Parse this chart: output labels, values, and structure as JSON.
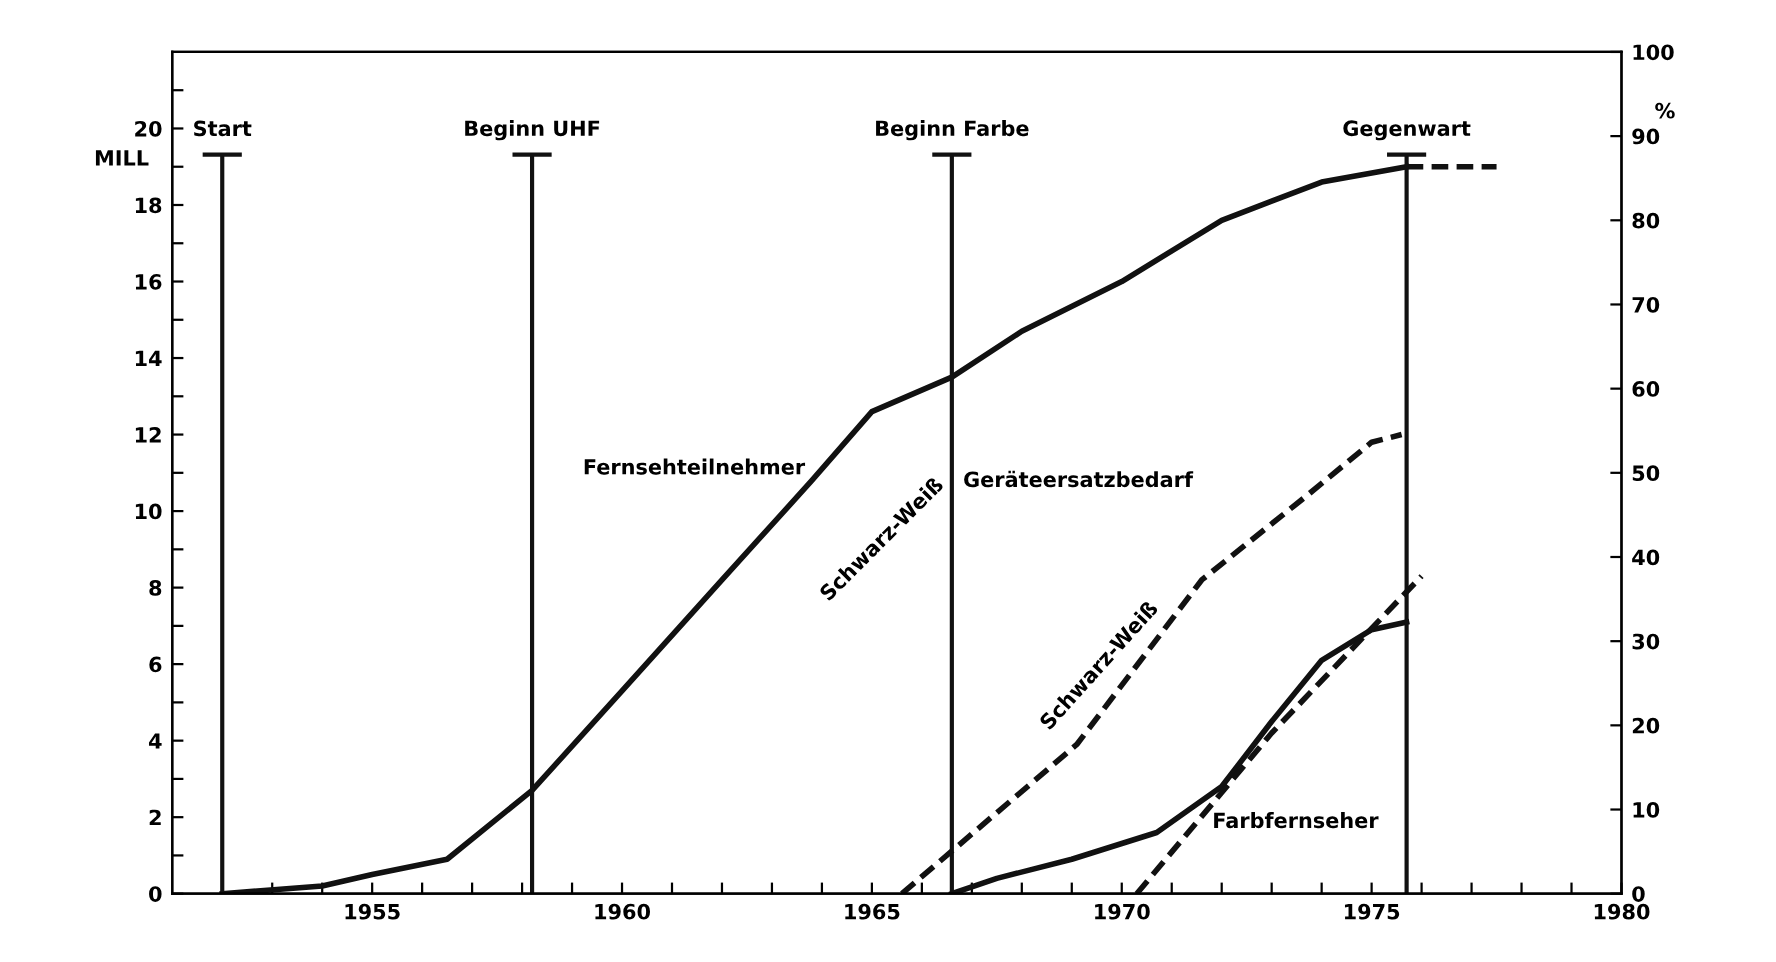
{
  "chart_data": {
    "type": "line",
    "ylabel": "MILL",
    "y2label": "%",
    "xlim": [
      1951,
      1980
    ],
    "xticks": [
      {
        "value": 1952,
        "label": null
      },
      {
        "value": 1953,
        "label": null
      },
      {
        "value": 1954,
        "label": null
      },
      1955,
      {
        "value": 1956,
        "label": null
      },
      {
        "value": 1957,
        "label": null
      },
      {
        "value": 1958,
        "label": null
      },
      {
        "value": 1959,
        "label": null
      },
      1960,
      {
        "value": 1961,
        "label": null
      },
      {
        "value": 1962,
        "label": null
      },
      {
        "value": 1963,
        "label": null
      },
      {
        "value": 1964,
        "label": null
      },
      1965,
      {
        "value": 1966,
        "label": null
      },
      {
        "value": 1967,
        "label": null
      },
      {
        "value": 1968,
        "label": null
      },
      {
        "value": 1969,
        "label": null
      },
      1970,
      {
        "value": 1971,
        "label": null
      },
      {
        "value": 1972,
        "label": null
      },
      {
        "value": 1973,
        "label": null
      },
      {
        "value": 1974,
        "label": null
      },
      1975,
      {
        "value": 1976,
        "label": null
      },
      {
        "value": 1977,
        "label": null
      },
      {
        "value": 1978,
        "label": null
      },
      {
        "value": 1979,
        "label": null
      },
      1980
    ],
    "ylim": [
      0,
      22
    ],
    "yticks": [
      0,
      {
        "value": 1,
        "label": null
      },
      2,
      {
        "value": 3,
        "label": null
      },
      4,
      {
        "value": 5,
        "label": null
      },
      6,
      {
        "value": 7,
        "label": null
      },
      8,
      {
        "value": 9,
        "label": null
      },
      10,
      {
        "value": 11,
        "label": null
      },
      12,
      {
        "value": 13,
        "label": null
      },
      14,
      {
        "value": 15,
        "label": null
      },
      16,
      {
        "value": 17,
        "label": null
      },
      18,
      {
        "value": 19,
        "label": null
      },
      20,
      {
        "value": 21,
        "label": null
      }
    ],
    "y2lim": [
      0,
      100
    ],
    "y2ticks": [
      0,
      10,
      20,
      30,
      40,
      50,
      60,
      70,
      80,
      90,
      100
    ],
    "grid": false,
    "legend": false,
    "marker": "none",
    "series": [
      {
        "color": "#111111",
        "line_style": "solid",
        "x": [
          1952,
          1954,
          1955,
          1956.5,
          1958.2,
          1960,
          1962,
          1963.8,
          1965,
          1966.6,
          1968,
          1970,
          1972,
          1974,
          1975.7
        ],
        "values": [
          0,
          0.2,
          0.5,
          0.9,
          2.7,
          5.3,
          8.2,
          10.8,
          12.6,
          13.5,
          14.7,
          16.0,
          17.6,
          18.6,
          19.0
        ]
      },
      {
        "color": "#111111",
        "line_style": "dashed",
        "x": [
          1975.7,
          1977.5
        ],
        "values": [
          19.0,
          19.0
        ]
      },
      {
        "color": "#111111",
        "line_style": "dashed",
        "x": [
          1965.6,
          1969.1,
          1971.6,
          1973.7,
          1975.0,
          1975.6
        ],
        "values": [
          0,
          3.9,
          8.2,
          10.4,
          11.8,
          12.0
        ]
      },
      {
        "color": "#111111",
        "line_style": "solid",
        "x": [
          1966.6,
          1967.5,
          1969,
          1970.7,
          1972,
          1973,
          1974,
          1975,
          1975.7
        ],
        "values": [
          0,
          0.4,
          0.9,
          1.6,
          2.8,
          4.5,
          6.1,
          6.9,
          7.1
        ]
      },
      {
        "color": "#111111",
        "line_style": "dashed",
        "x": [
          1970.3,
          1973,
          1976
        ],
        "values": [
          0,
          4.2,
          8.3
        ]
      }
    ],
    "ref_lines": [
      {
        "axis": "x",
        "value": 1952,
        "label": "Start"
      },
      {
        "axis": "x",
        "value": 1958.2,
        "label": "Beginn UHF"
      },
      {
        "axis": "x",
        "value": 1966.6,
        "label": "Beginn Farbe"
      },
      {
        "axis": "x",
        "value": 1975.7,
        "label": "Gegenwart"
      }
    ],
    "annotations": [
      "Fernsehteilnehmer",
      "Schwarz-Weiß",
      "Geräteersatzbedarf",
      "Schwarz-Weiß",
      "Farbfernseher"
    ]
  }
}
